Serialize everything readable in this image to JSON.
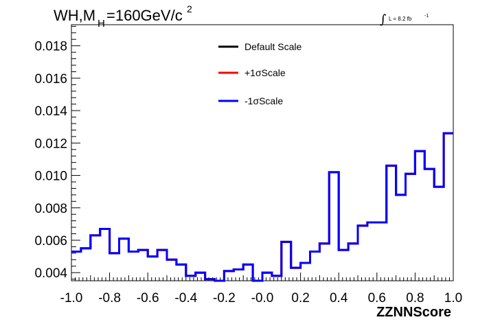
{
  "chart_data": {
    "type": "line",
    "title": {
      "prefix": "WH,M",
      "subscript": "H",
      "suffix": "=160GeV/c",
      "superscript": "2"
    },
    "luminosity": {
      "symbol": "∫",
      "text": "L = 8.2 fb",
      "exponent": "-1"
    },
    "xlabel": "ZZNNScore",
    "xlim": [
      -1.0,
      1.0
    ],
    "ylim": [
      0.0035,
      0.0193
    ],
    "x_ticks": [
      -1.0,
      -0.8,
      -0.6,
      -0.4,
      -0.2,
      0.0,
      0.2,
      0.4,
      0.6,
      0.8,
      1.0
    ],
    "x_tick_labels": [
      "-1.0",
      "-0.8",
      "-0.6",
      "-0.4",
      "-0.2",
      "-0.0",
      "0.2",
      "0.4",
      "0.6",
      "0.8",
      "1.0"
    ],
    "y_ticks": [
      0.004,
      0.006,
      0.008,
      0.01,
      0.012,
      0.014,
      0.016,
      0.018
    ],
    "y_tick_labels": [
      "0.004",
      "0.006",
      "0.008",
      "0.010",
      "0.012",
      "0.014",
      "0.016",
      "0.018"
    ],
    "bin_edges": [
      -1.0,
      -0.95,
      -0.9,
      -0.85,
      -0.8,
      -0.75,
      -0.7,
      -0.65,
      -0.6,
      -0.55,
      -0.5,
      -0.45,
      -0.4,
      -0.35,
      -0.3,
      -0.25,
      -0.2,
      -0.15,
      -0.1,
      -0.05,
      0.0,
      0.05,
      0.1,
      0.15,
      0.2,
      0.25,
      0.3,
      0.35,
      0.4,
      0.45,
      0.5,
      0.55,
      0.6,
      0.65,
      0.7,
      0.75,
      0.8,
      0.85,
      0.9,
      0.95,
      1.0
    ],
    "series": [
      {
        "name": "Default Scale",
        "color": "#000000",
        "values": [
          0.0053,
          0.0055,
          0.0063,
          0.0067,
          0.0052,
          0.0061,
          0.0053,
          0.0054,
          0.005,
          0.0054,
          0.0048,
          0.0045,
          0.0038,
          0.004,
          0.0036,
          0.0035,
          0.0041,
          0.0042,
          0.0045,
          0.0035,
          0.004,
          0.0038,
          0.0059,
          0.0043,
          0.0046,
          0.0053,
          0.0058,
          0.0102,
          0.0054,
          0.0058,
          0.0069,
          0.0071,
          0.0071,
          0.0106,
          0.0088,
          0.0101,
          0.0115,
          0.0104,
          0.0093,
          0.0126
        ]
      },
      {
        "name": "+1σScale",
        "color": "#ff0000",
        "values": [
          0.0053,
          0.0055,
          0.0063,
          0.0067,
          0.0052,
          0.0061,
          0.0053,
          0.0054,
          0.005,
          0.0054,
          0.0048,
          0.0045,
          0.0038,
          0.004,
          0.0036,
          0.0035,
          0.0041,
          0.0042,
          0.0045,
          0.0035,
          0.004,
          0.0038,
          0.0059,
          0.0043,
          0.0046,
          0.0053,
          0.0058,
          0.0102,
          0.0054,
          0.0058,
          0.0069,
          0.0071,
          0.0071,
          0.0106,
          0.0088,
          0.0101,
          0.0115,
          0.0104,
          0.0093,
          0.0126
        ]
      },
      {
        "name": "-1σScale",
        "color": "#0000ff",
        "values": [
          0.0053,
          0.0055,
          0.0063,
          0.0067,
          0.0052,
          0.0061,
          0.0053,
          0.0054,
          0.005,
          0.0054,
          0.0048,
          0.0045,
          0.0038,
          0.004,
          0.0036,
          0.0035,
          0.0041,
          0.0042,
          0.0045,
          0.0035,
          0.004,
          0.0038,
          0.0059,
          0.0043,
          0.0046,
          0.0053,
          0.0058,
          0.0102,
          0.0054,
          0.0058,
          0.0069,
          0.0071,
          0.0071,
          0.0106,
          0.0088,
          0.0101,
          0.0115,
          0.0104,
          0.0093,
          0.0126
        ]
      }
    ],
    "legend_position": "top-center",
    "grid": false
  }
}
